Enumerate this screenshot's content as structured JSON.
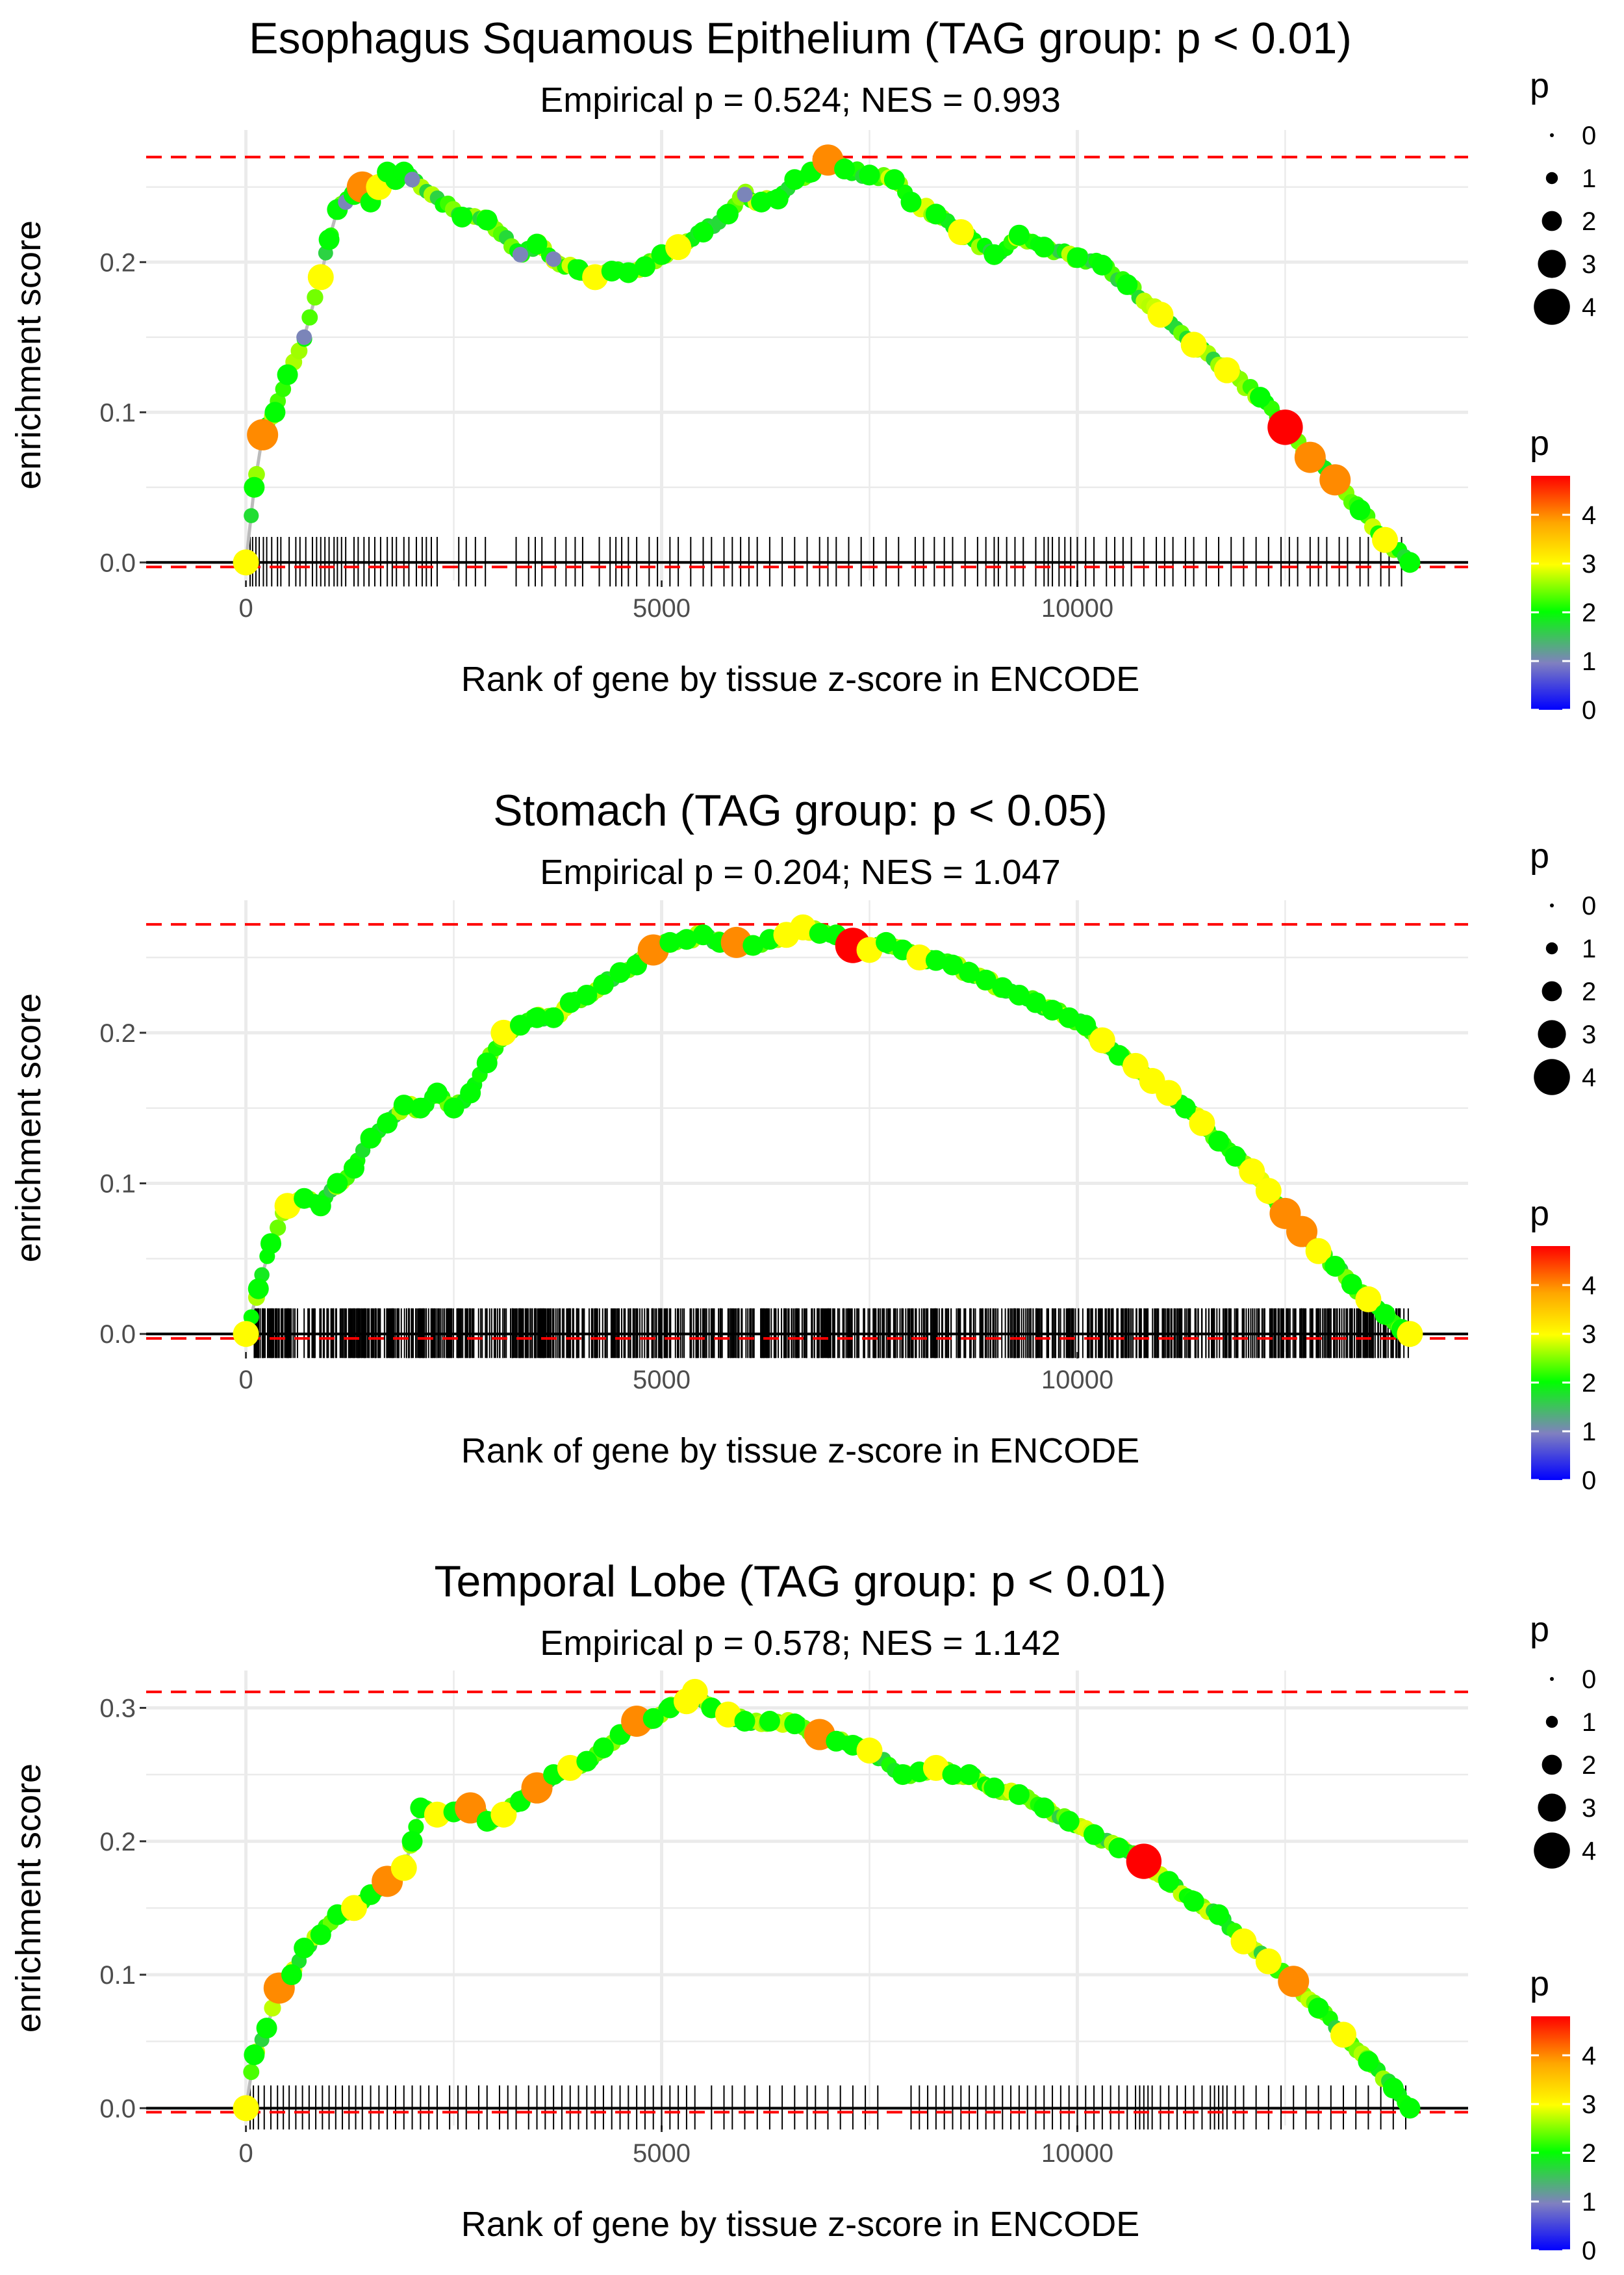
{
  "figure": {
    "panel_count": 3,
    "xlabel": "Rank of gene by tissue z-score in ENCODE",
    "ylabel": "enrichment score",
    "legend_size_title": "p",
    "legend_size_labels": [
      "0",
      "1",
      "2",
      "3",
      "4"
    ],
    "legend_color_title": "p",
    "legend_color_labels": [
      "4",
      "3",
      "2",
      "1",
      "0"
    ],
    "colors": {
      "gradient_stops": [
        "#0000ff",
        "#8080c0",
        "#00ff00",
        "#ffff00",
        "#ffa500",
        "#ff0000"
      ],
      "red_dash": "#ff0000",
      "line": "#bbbbbb"
    }
  },
  "chart_data": [
    {
      "type": "line",
      "title": "Esophagus Squamous Epithelium (TAG group: p < 0.01)",
      "subtitle": "Empirical p = 0.524; NES = 0.993",
      "xlabel": "Rank of gene by tissue z-score in ENCODE",
      "ylabel": "enrichment score",
      "xlim": [
        -1200,
        14700
      ],
      "ylim": [
        -0.012,
        0.288
      ],
      "xticks": [
        0,
        5000,
        10000
      ],
      "xtick_labels": [
        "0",
        "5000",
        "10000"
      ],
      "yticks": [
        0.0,
        0.1,
        0.2
      ],
      "ytick_labels": [
        "0.0",
        "0.1",
        "0.2"
      ],
      "max_es": 0.27,
      "min_es": -0.003,
      "x": [
        0,
        100,
        200,
        350,
        500,
        700,
        900,
        1000,
        1100,
        1200,
        1300,
        1400,
        1500,
        1600,
        1700,
        1800,
        1900,
        2000,
        2600,
        2900,
        3300,
        3500,
        3700,
        4000,
        4200,
        4400,
        4600,
        4800,
        5000,
        5200,
        5500,
        5800,
        6000,
        6200,
        6400,
        6600,
        6800,
        7000,
        7200,
        7500,
        7800,
        8000,
        8300,
        8600,
        9000,
        9300,
        9600,
        10000,
        10300,
        10600,
        11000,
        11400,
        11800,
        12200,
        12500,
        12800,
        13100,
        13400,
        13700,
        14000
      ],
      "y": [
        0.0,
        0.05,
        0.085,
        0.1,
        0.125,
        0.15,
        0.19,
        0.215,
        0.235,
        0.24,
        0.245,
        0.25,
        0.24,
        0.25,
        0.26,
        0.255,
        0.26,
        0.255,
        0.23,
        0.228,
        0.205,
        0.212,
        0.202,
        0.195,
        0.19,
        0.194,
        0.193,
        0.197,
        0.205,
        0.21,
        0.22,
        0.232,
        0.245,
        0.24,
        0.242,
        0.255,
        0.26,
        0.268,
        0.262,
        0.258,
        0.255,
        0.24,
        0.232,
        0.22,
        0.205,
        0.218,
        0.21,
        0.203,
        0.198,
        0.185,
        0.165,
        0.145,
        0.128,
        0.11,
        0.09,
        0.07,
        0.055,
        0.035,
        0.015,
        0.0
      ],
      "p": [
        3,
        2,
        4,
        2,
        2,
        1,
        3,
        2,
        2,
        1,
        2,
        4,
        2,
        3,
        2,
        2,
        2,
        1,
        2,
        2,
        1,
        2,
        1,
        2,
        3,
        2,
        2,
        2,
        2,
        3,
        2,
        2,
        1,
        2,
        2,
        2,
        2,
        4,
        2,
        2,
        2,
        2,
        2,
        3,
        2,
        2,
        2,
        2,
        2,
        2,
        3,
        3,
        3,
        2,
        4.8,
        4,
        4,
        2,
        3,
        2
      ],
      "hits": [
        50,
        80,
        120,
        160,
        210,
        250,
        310,
        380,
        420,
        520,
        600,
        650,
        720,
        800,
        850,
        900,
        950,
        1000,
        1060,
        1100,
        1150,
        1200,
        1300,
        1350,
        1420,
        1480,
        1550,
        1620,
        1700,
        1760,
        1810,
        1900,
        1960,
        2050,
        2120,
        2170,
        2230,
        2300,
        2560,
        2650,
        2760,
        2880,
        3250,
        3400,
        3480,
        3560,
        3720,
        3850,
        3960,
        4050,
        4250,
        4380,
        4450,
        4520,
        4600,
        4700,
        4850,
        4950,
        5100,
        5200,
        5350,
        5500,
        5600,
        5750,
        5850,
        5950,
        6050,
        6150,
        6300,
        6450,
        6600,
        6750,
        6900,
        7000,
        7100,
        7250,
        7400,
        7550,
        7700,
        7850,
        8050,
        8150,
        8280,
        8400,
        8500,
        8650,
        8800,
        8900,
        9000,
        9050,
        9150,
        9250,
        9350,
        9500,
        9600,
        9650,
        9700,
        9780,
        9850,
        9920,
        10000,
        10100,
        10200,
        10350,
        10450,
        10550,
        10650,
        10800,
        10950,
        11050,
        11150,
        11300,
        11400,
        11550,
        11700,
        11850,
        12000,
        12150,
        12300,
        12450,
        12550,
        12650,
        12800,
        12900,
        13000,
        13150,
        13250,
        13400,
        13500,
        13650,
        13750,
        13900
      ]
    },
    {
      "type": "line",
      "title": "Stomach (TAG group: p < 0.05)",
      "subtitle": "Empirical p = 0.204; NES = 1.047",
      "xlabel": "Rank of gene by tissue z-score in ENCODE",
      "ylabel": "enrichment score",
      "xlim": [
        -1200,
        14700
      ],
      "ylim": [
        -0.012,
        0.288
      ],
      "xticks": [
        0,
        5000,
        10000
      ],
      "xtick_labels": [
        "0",
        "5000",
        "10000"
      ],
      "yticks": [
        0.0,
        0.1,
        0.2
      ],
      "ytick_labels": [
        "0.0",
        "0.1",
        "0.2"
      ],
      "max_es": 0.272,
      "min_es": -0.003,
      "x": [
        0,
        150,
        300,
        500,
        700,
        900,
        1100,
        1300,
        1500,
        1700,
        1900,
        2100,
        2300,
        2500,
        2700,
        2900,
        3100,
        3300,
        3500,
        3700,
        3900,
        4100,
        4300,
        4500,
        4700,
        4900,
        5100,
        5300,
        5500,
        5700,
        5900,
        6100,
        6300,
        6500,
        6700,
        6900,
        7100,
        7300,
        7500,
        7700,
        7900,
        8100,
        8300,
        8500,
        8700,
        8900,
        9100,
        9300,
        9500,
        9700,
        9900,
        10100,
        10300,
        10500,
        10700,
        10900,
        11100,
        11300,
        11500,
        11700,
        11900,
        12100,
        12300,
        12500,
        12700,
        12900,
        13100,
        13300,
        13500,
        13700,
        13900,
        14000
      ],
      "y": [
        0.0,
        0.03,
        0.06,
        0.085,
        0.09,
        0.085,
        0.1,
        0.11,
        0.13,
        0.14,
        0.152,
        0.15,
        0.16,
        0.15,
        0.16,
        0.18,
        0.2,
        0.205,
        0.21,
        0.21,
        0.22,
        0.225,
        0.232,
        0.24,
        0.245,
        0.255,
        0.26,
        0.262,
        0.265,
        0.26,
        0.26,
        0.258,
        0.262,
        0.265,
        0.27,
        0.266,
        0.265,
        0.258,
        0.255,
        0.26,
        0.255,
        0.25,
        0.248,
        0.245,
        0.24,
        0.235,
        0.23,
        0.225,
        0.22,
        0.215,
        0.21,
        0.205,
        0.195,
        0.185,
        0.178,
        0.168,
        0.16,
        0.15,
        0.14,
        0.128,
        0.118,
        0.108,
        0.095,
        0.08,
        0.068,
        0.055,
        0.045,
        0.033,
        0.023,
        0.013,
        0.003,
        0.0
      ],
      "p": [
        3,
        2,
        2,
        3,
        2,
        2,
        2,
        2,
        2,
        2,
        2,
        2,
        2,
        2,
        2,
        2,
        3,
        2,
        2,
        2,
        2,
        2,
        2,
        2,
        2,
        4,
        2,
        2,
        2,
        2,
        4,
        2,
        2,
        3,
        3,
        2,
        2,
        4.8,
        3,
        2,
        2,
        3,
        2,
        2,
        2,
        2,
        2,
        2,
        2,
        2,
        2,
        2,
        3,
        2,
        3,
        3,
        3,
        2,
        3,
        2,
        2,
        3,
        3,
        4,
        4,
        3,
        2,
        2,
        3,
        2,
        2,
        3
      ],
      "hits_dense": true,
      "hits_count": 1000,
      "hits_range": [
        100,
        14000
      ]
    },
    {
      "type": "line",
      "title": "Temporal Lobe (TAG group: p < 0.01)",
      "subtitle": "Empirical p = 0.578; NES = 1.142",
      "xlabel": "Rank of gene by tissue z-score in ENCODE",
      "ylabel": "enrichment score",
      "xlim": [
        -1200,
        14700
      ],
      "ylim": [
        -0.013,
        0.328
      ],
      "xticks": [
        0,
        5000,
        10000
      ],
      "xtick_labels": [
        "0",
        "5000",
        "10000"
      ],
      "yticks": [
        0.0,
        0.1,
        0.2,
        0.3
      ],
      "ytick_labels": [
        "0.0",
        "0.1",
        "0.2",
        "0.3"
      ],
      "max_es": 0.312,
      "min_es": -0.003,
      "x": [
        0,
        100,
        250,
        400,
        550,
        700,
        900,
        1100,
        1300,
        1500,
        1700,
        1900,
        2000,
        2100,
        2300,
        2500,
        2700,
        2900,
        3100,
        3300,
        3500,
        3700,
        3900,
        4100,
        4300,
        4500,
        4700,
        4900,
        5100,
        5300,
        5400,
        5600,
        5800,
        6000,
        6300,
        6600,
        6900,
        7100,
        7300,
        7500,
        7900,
        8100,
        8300,
        8500,
        8700,
        9000,
        9300,
        9600,
        9900,
        10200,
        10500,
        10800,
        11100,
        11400,
        11700,
        12000,
        12300,
        12600,
        12900,
        13200,
        13500,
        13800,
        14000
      ],
      "y": [
        0.0,
        0.04,
        0.06,
        0.09,
        0.1,
        0.12,
        0.13,
        0.145,
        0.15,
        0.16,
        0.17,
        0.18,
        0.2,
        0.225,
        0.22,
        0.222,
        0.225,
        0.215,
        0.22,
        0.23,
        0.24,
        0.25,
        0.255,
        0.26,
        0.27,
        0.28,
        0.29,
        0.292,
        0.3,
        0.305,
        0.312,
        0.3,
        0.295,
        0.29,
        0.29,
        0.288,
        0.28,
        0.275,
        0.272,
        0.268,
        0.25,
        0.252,
        0.255,
        0.25,
        0.25,
        0.24,
        0.235,
        0.225,
        0.215,
        0.205,
        0.195,
        0.185,
        0.17,
        0.155,
        0.145,
        0.125,
        0.11,
        0.095,
        0.075,
        0.055,
        0.035,
        0.015,
        0.0
      ],
      "p": [
        3,
        2,
        2,
        4,
        2,
        2,
        2,
        2,
        3,
        2,
        4,
        3,
        2,
        2,
        3,
        2,
        4,
        2,
        3,
        2,
        4,
        2,
        3,
        2,
        2,
        2,
        4,
        2,
        2,
        3,
        3,
        2,
        3,
        2,
        2,
        2,
        4,
        2,
        2,
        3,
        2,
        2,
        3,
        2,
        2,
        2,
        2,
        2,
        2,
        2,
        2,
        4.8,
        2,
        2,
        2,
        3,
        3,
        4,
        2,
        3,
        2,
        2,
        2
      ],
      "hits": [
        50,
        90,
        150,
        220,
        300,
        380,
        450,
        520,
        600,
        680,
        760,
        840,
        920,
        1000,
        1080,
        1160,
        1240,
        1320,
        1400,
        1500,
        1600,
        1700,
        1800,
        1900,
        2000,
        2100,
        2200,
        2300,
        2450,
        2550,
        2650,
        2800,
        2900,
        3050,
        3150,
        3250,
        3400,
        3500,
        3600,
        3700,
        3800,
        3900,
        4000,
        4100,
        4200,
        4300,
        4400,
        4500,
        4600,
        4700,
        4800,
        4900,
        5000,
        5100,
        5200,
        5300,
        5400,
        5600,
        5750,
        5850,
        6000,
        6150,
        6300,
        6450,
        6600,
        6750,
        6850,
        7000,
        7150,
        7300,
        7450,
        7600,
        8000,
        8100,
        8200,
        8300,
        8400,
        8500,
        8600,
        8700,
        8800,
        8900,
        9000,
        9100,
        9200,
        9300,
        9400,
        9500,
        9600,
        9700,
        9800,
        9900,
        10000,
        10100,
        10200,
        10300,
        10400,
        10500,
        10600,
        10700,
        10750,
        10800,
        10850,
        10900,
        11000,
        11100,
        11200,
        11300,
        11400,
        11500,
        11600,
        11650,
        11700,
        11750,
        11800,
        11900,
        12000,
        12150,
        12300,
        12450,
        12600,
        12750,
        12900,
        13050,
        13200,
        13350,
        13500,
        13650,
        13800,
        13950
      ]
    }
  ]
}
